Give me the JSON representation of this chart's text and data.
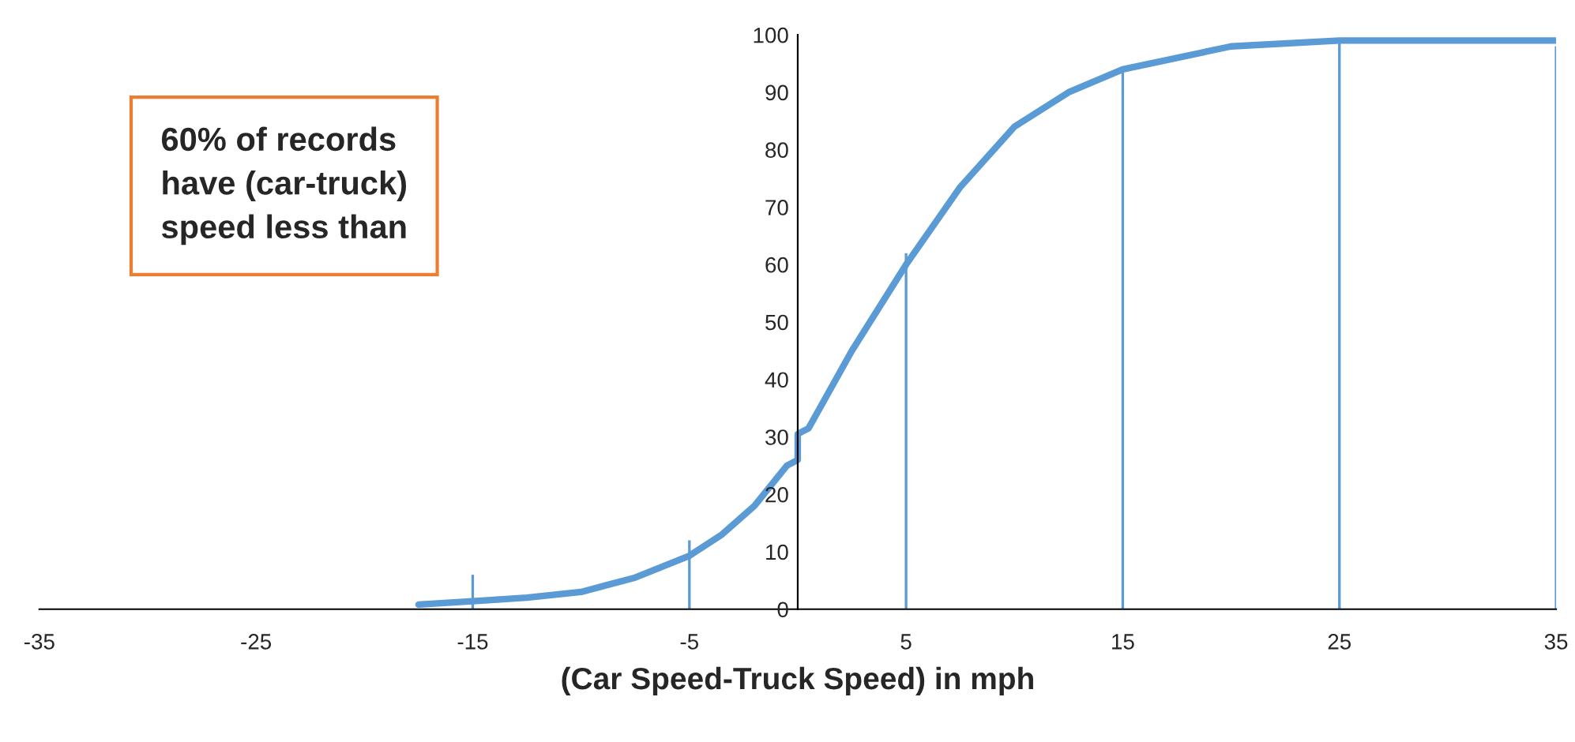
{
  "chart_data": {
    "type": "line",
    "xlabel": "(Car Speed-Truck Speed) in mph",
    "annotations": [
      "60% of records\nhave (car-truck)\nspeed less than"
    ],
    "series": [
      {
        "color": "#5b9bd5",
        "x": [
          -17.5,
          -15,
          -12.5,
          -10,
          -7.5,
          -5,
          -3.5,
          -2,
          -0.5,
          0,
          0,
          0.5,
          2.5,
          5,
          7.5,
          10,
          12.5,
          15,
          20,
          25,
          35
        ],
        "values": [
          0.8,
          1.4,
          2,
          3,
          5.5,
          9.3,
          13,
          18,
          25,
          26,
          30.5,
          31.5,
          45,
          60,
          73.5,
          84,
          90,
          94,
          98,
          99,
          99
        ]
      },
      {
        "type": "bar",
        "color": "#5b9bd5",
        "x": [
          -15,
          -5,
          5,
          15,
          25,
          35
        ],
        "values": [
          6,
          12,
          62,
          94,
          99,
          98
        ]
      }
    ],
    "xlim": [
      -35,
      35
    ],
    "xticks": [
      -35,
      -25,
      -15,
      -5,
      5,
      15,
      25,
      35
    ],
    "ylim": [
      0,
      100
    ],
    "yticks": [
      0,
      10,
      20,
      30,
      40,
      50,
      60,
      70,
      80,
      90,
      100
    ],
    "grid": false,
    "legend": false
  }
}
